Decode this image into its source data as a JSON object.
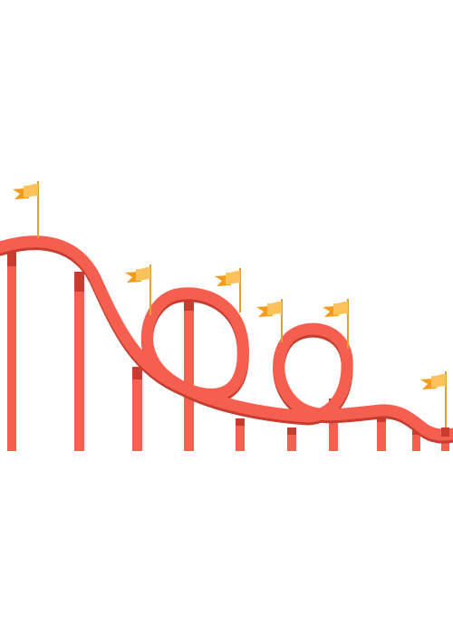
{
  "illustration": {
    "subject": "roller-coaster",
    "flag_count": 6,
    "loop_count": 2,
    "colors": {
      "background": "#ffffff",
      "track": "#f45f4f",
      "track_shadow": "#c73c2f",
      "support": "#f45f4f",
      "support_cap": "#c73c2f",
      "flag_light": "#fcc25a",
      "flag_dark": "#f59b1b",
      "pole": "#e0a133"
    }
  }
}
